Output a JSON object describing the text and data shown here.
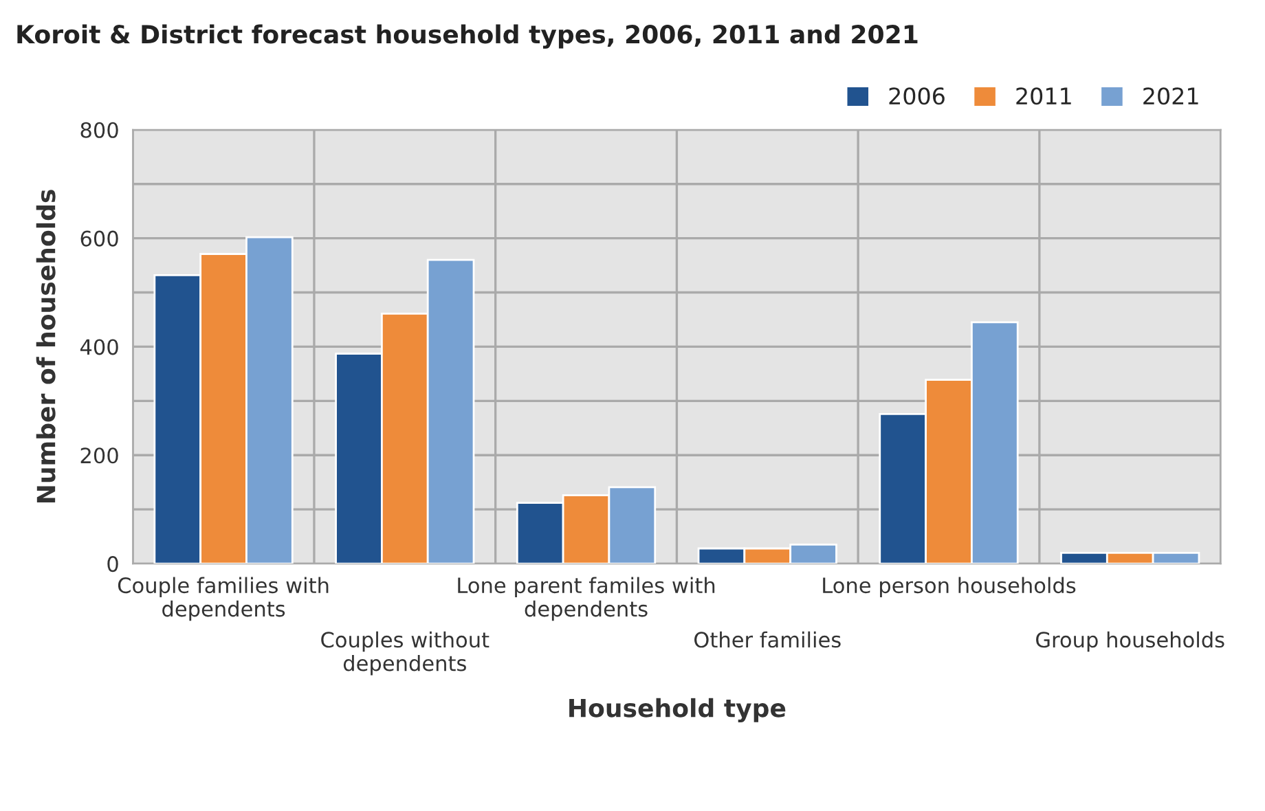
{
  "chart_data": {
    "type": "bar",
    "title": "Koroit & District forecast household types, 2006, 2011 and 2021",
    "xlabel": "Household type",
    "ylabel": "Number of households",
    "categories": [
      "Couple families with\ndependents",
      "Couples without\ndependents",
      "Lone parent familes with\ndependents",
      "Other families",
      "Lone person households",
      "Group households"
    ],
    "series": [
      {
        "name": "2006",
        "color": "#21538f",
        "values": [
          532,
          387,
          112,
          28,
          276,
          20
        ]
      },
      {
        "name": "2011",
        "color": "#ee8b3a",
        "values": [
          571,
          461,
          126,
          28,
          339,
          20
        ]
      },
      {
        "name": "2021",
        "color": "#77a1d2",
        "values": [
          602,
          560,
          141,
          35,
          445,
          20
        ]
      }
    ],
    "ylim": [
      0,
      800
    ],
    "yticks": [
      0,
      {
        "value": 100,
        "label": null
      },
      200,
      {
        "value": 300,
        "label": null
      },
      400,
      {
        "value": 500,
        "label": null
      },
      600,
      {
        "value": 700,
        "label": null
      },
      800
    ],
    "grid": true,
    "legend": "top right"
  }
}
